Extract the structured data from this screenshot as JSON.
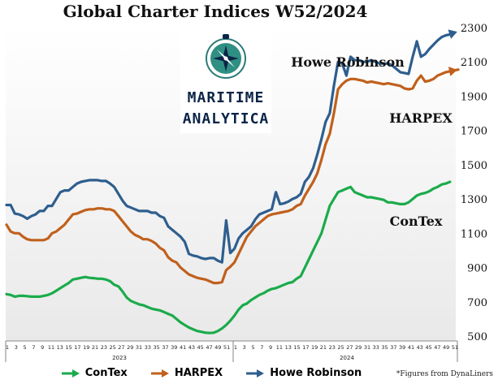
{
  "chart_data": {
    "type": "line",
    "title": "Global Charter Indices W52/2024",
    "xlabel": "",
    "ylabel": "",
    "ylim": [
      500,
      2300
    ],
    "yticks": [
      500,
      700,
      900,
      1100,
      1300,
      1500,
      1700,
      1900,
      2100,
      2300
    ],
    "grid": false,
    "legend": "bottom",
    "x_week_labels": [
      "1",
      "3",
      "5",
      "7",
      "9",
      "11",
      "13",
      "15",
      "17",
      "19",
      "21",
      "23",
      "25",
      "27",
      "29",
      "31",
      "33",
      "35",
      "37",
      "39",
      "41",
      "43",
      "45",
      "47",
      "49",
      "51",
      "1",
      "3",
      "5",
      "7",
      "9",
      "11",
      "13",
      "15",
      "17",
      "19",
      "21",
      "23",
      "25",
      "27",
      "29",
      "31",
      "33",
      "35",
      "37",
      "39",
      "41",
      "43",
      "45",
      "47",
      "49",
      "51"
    ],
    "x_year_labels": [
      "2023",
      "2024"
    ],
    "series": [
      {
        "name": "Howe Robinson",
        "color": "#2e5e8e",
        "values": [
          1265,
          1265,
          1215,
          1210,
          1200,
          1185,
          1200,
          1210,
          1230,
          1230,
          1260,
          1260,
          1300,
          1340,
          1350,
          1350,
          1370,
          1390,
          1400,
          1405,
          1410,
          1410,
          1410,
          1405,
          1405,
          1390,
          1370,
          1330,
          1290,
          1260,
          1250,
          1240,
          1230,
          1230,
          1230,
          1220,
          1220,
          1200,
          1190,
          1140,
          1120,
          1100,
          1080,
          1050,
          980,
          970,
          965,
          955,
          950,
          955,
          955,
          940,
          930,
          1175,
          985,
          1010,
          1070,
          1100,
          1120,
          1140,
          1180,
          1210,
          1220,
          1230,
          1240,
          1340,
          1270,
          1275,
          1285,
          1300,
          1310,
          1330,
          1400,
          1430,
          1480,
          1560,
          1650,
          1750,
          1800,
          1960,
          2100,
          2090,
          2020,
          2130,
          2110,
          2110,
          2100,
          2100,
          2110,
          2100,
          2090,
          2090,
          2090,
          2080,
          2060,
          2040,
          2035,
          2030,
          2130,
          2220,
          2130,
          2145,
          2175,
          2200,
          2225,
          2245,
          2255,
          2260,
          2270
        ]
      },
      {
        "name": "HARPEX",
        "color": "#c0601c",
        "values": [
          1150,
          1110,
          1100,
          1100,
          1080,
          1065,
          1060,
          1060,
          1060,
          1060,
          1070,
          1100,
          1110,
          1130,
          1150,
          1180,
          1210,
          1215,
          1225,
          1235,
          1240,
          1240,
          1245,
          1245,
          1240,
          1240,
          1230,
          1200,
          1170,
          1140,
          1110,
          1090,
          1080,
          1065,
          1065,
          1055,
          1040,
          1015,
          1000,
          960,
          940,
          930,
          900,
          880,
          860,
          850,
          840,
          835,
          830,
          820,
          810,
          810,
          815,
          885,
          905,
          930,
          980,
          1030,
          1080,
          1110,
          1140,
          1160,
          1180,
          1200,
          1210,
          1215,
          1220,
          1225,
          1230,
          1240,
          1260,
          1270,
          1320,
          1360,
          1400,
          1450,
          1530,
          1620,
          1680,
          1800,
          1940,
          1970,
          1990,
          2000,
          2000,
          1995,
          1990,
          1980,
          1985,
          1980,
          1975,
          1970,
          1975,
          1970,
          1965,
          1960,
          1945,
          1940,
          1945,
          1990,
          2020,
          1985,
          1990,
          2000,
          2020,
          2030,
          2040,
          2045,
          2050,
          2055
        ]
      },
      {
        "name": "ConTex",
        "color": "#1aab4b",
        "values": [
          745,
          740,
          730,
          735,
          735,
          733,
          730,
          730,
          730,
          735,
          740,
          750,
          765,
          780,
          795,
          810,
          830,
          835,
          840,
          845,
          840,
          838,
          835,
          835,
          830,
          820,
          800,
          790,
          760,
          725,
          705,
          695,
          685,
          680,
          670,
          660,
          655,
          650,
          640,
          630,
          620,
          600,
          580,
          565,
          550,
          540,
          530,
          525,
          520,
          518,
          520,
          530,
          545,
          565,
          590,
          620,
          655,
          680,
          690,
          710,
          725,
          740,
          750,
          765,
          775,
          780,
          790,
          800,
          810,
          815,
          835,
          850,
          900,
          950,
          1000,
          1050,
          1100,
          1180,
          1260,
          1300,
          1340,
          1350,
          1360,
          1370,
          1340,
          1330,
          1320,
          1310,
          1310,
          1305,
          1300,
          1295,
          1280,
          1280,
          1275,
          1270,
          1270,
          1280,
          1300,
          1320,
          1330,
          1335,
          1345,
          1360,
          1370,
          1385,
          1390,
          1400
        ]
      }
    ],
    "annotations": [
      "Howe Robinson",
      "HARPEX",
      "ConTex"
    ]
  },
  "logo": {
    "line1": "MARITIME",
    "line2": "ANALYTICA",
    "icon": "compass-icon"
  },
  "footnote": "*Figures from DynaLiners"
}
